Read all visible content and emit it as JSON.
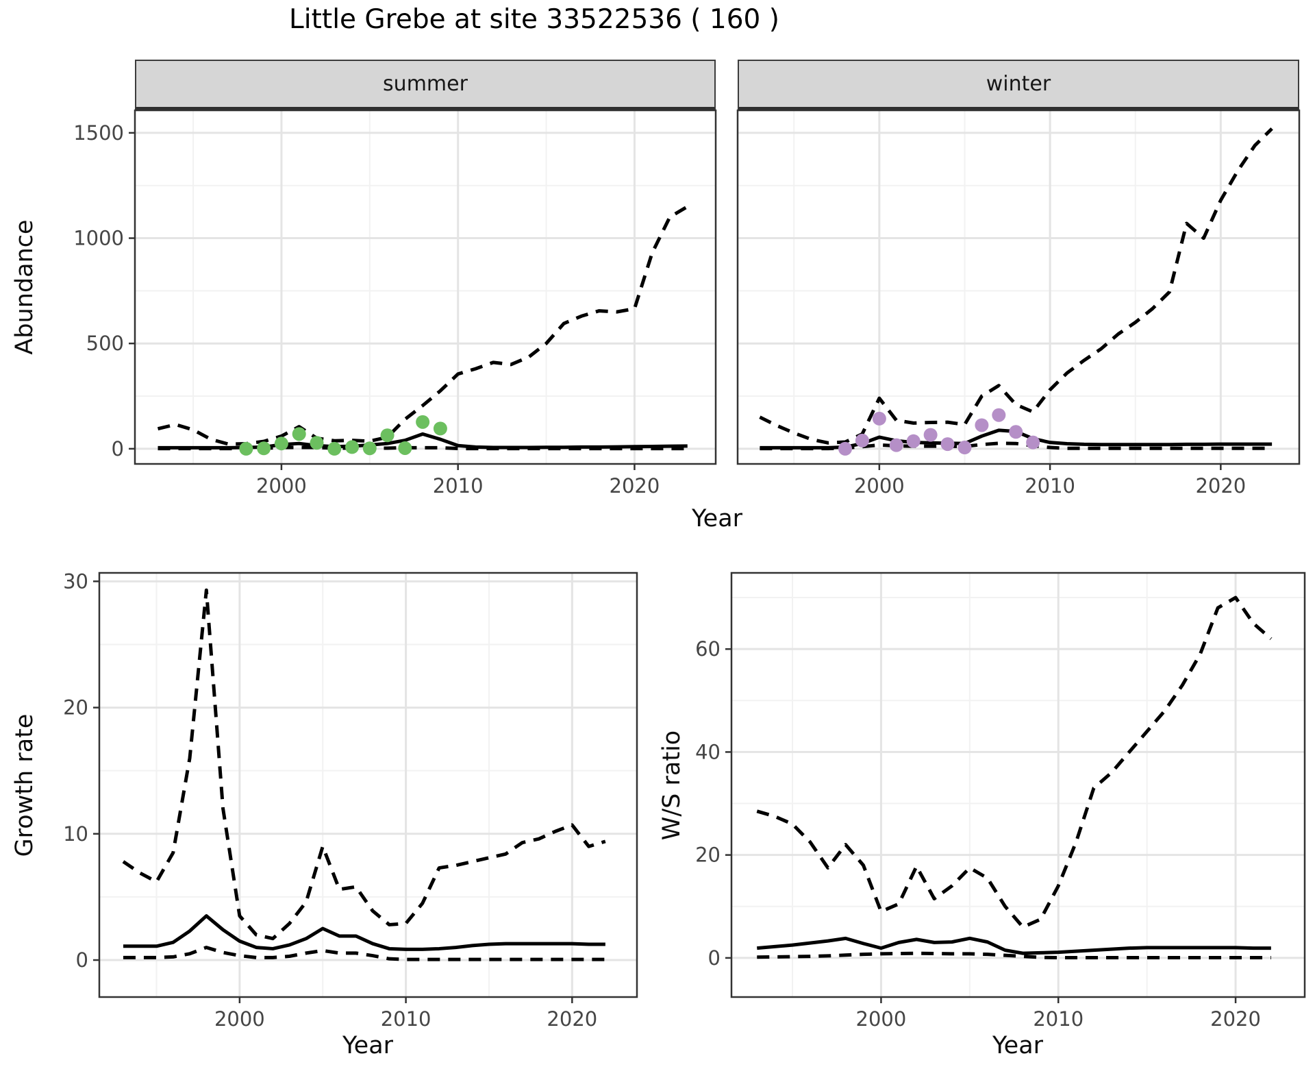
{
  "title": "Little Grebe at site 33522536 ( 160 )",
  "facets": {
    "summer": "summer",
    "winter": "winter"
  },
  "axis_titles": {
    "abundance": "Abundance",
    "year": "Year",
    "growth_rate": "Growth rate",
    "ws_ratio": "W/S ratio"
  },
  "colors": {
    "summer_points": "#6cbf5f",
    "winter_points": "#b58fc7",
    "line": "#000000",
    "strip_bg": "#d6d6d6",
    "panel_border": "#333333",
    "grid_major": "#e4e4e4",
    "grid_minor": "#f2f2f2",
    "axis_text": "#454545"
  },
  "chart_data": [
    {
      "id": "abundance_summer",
      "type": "line",
      "facet_label": "summer",
      "xlabel": "Year",
      "ylabel": "Abundance",
      "xlim": [
        1991.7,
        2024.6
      ],
      "ylim": [
        -72,
        1607
      ],
      "xticks": [
        2000,
        2010,
        2020
      ],
      "xminorticks": [
        1995,
        2005,
        2015
      ],
      "yticks": [
        0,
        500,
        1000,
        1500
      ],
      "yminorticks": [
        250,
        750,
        1250
      ],
      "grid": true,
      "legend": "none",
      "x": [
        1993,
        1994,
        1995,
        1996,
        1997,
        1998,
        1999,
        2000,
        2001,
        2002,
        2003,
        2004,
        2005,
        2006,
        2007,
        2008,
        2009,
        2010,
        2011,
        2012,
        2013,
        2014,
        2015,
        2016,
        2017,
        2018,
        2019,
        2020,
        2021,
        2022,
        2023
      ],
      "series": [
        {
          "name": "median",
          "style": "solid",
          "values": [
            5,
            5,
            5,
            5,
            5,
            6,
            8,
            20,
            25,
            15,
            10,
            12,
            18,
            25,
            40,
            70,
            45,
            15,
            8,
            6,
            6,
            6,
            7,
            7,
            8,
            8,
            9,
            10,
            11,
            12,
            13
          ]
        },
        {
          "name": "upper_95ci",
          "style": "dashed",
          "values": [
            95,
            115,
            90,
            45,
            22,
            24,
            35,
            60,
            105,
            50,
            38,
            40,
            36,
            55,
            140,
            205,
            275,
            355,
            380,
            410,
            400,
            435,
            500,
            595,
            630,
            655,
            650,
            665,
            930,
            1100,
            1150
          ]
        },
        {
          "name": "lower_95ci",
          "style": "dashed",
          "values": [
            1,
            1,
            1,
            1,
            1,
            1,
            2,
            6,
            6,
            6,
            3,
            3,
            3,
            3,
            5,
            5,
            5,
            1,
            1,
            1,
            1,
            1,
            1,
            1,
            1,
            1,
            1,
            1,
            1,
            1,
            1
          ]
        }
      ],
      "points": {
        "name": "observed_counts_summer",
        "color": "#6cbf5f",
        "x": [
          1998,
          1999,
          2000,
          2001,
          2002,
          2003,
          2004,
          2005,
          2006,
          2007,
          2008,
          2009
        ],
        "y": [
          0,
          2,
          25,
          70,
          28,
          0,
          8,
          2,
          64,
          3,
          127,
          96
        ]
      }
    },
    {
      "id": "abundance_winter",
      "type": "line",
      "facet_label": "winter",
      "xlabel": "Year",
      "ylabel": "Abundance",
      "xlim": [
        1991.7,
        2024.6
      ],
      "ylim": [
        -72,
        1607
      ],
      "xticks": [
        2000,
        2010,
        2020
      ],
      "xminorticks": [
        1995,
        2005,
        2015
      ],
      "yticks": [
        0,
        500,
        1000,
        1500
      ],
      "yminorticks": [
        250,
        750,
        1250
      ],
      "grid": true,
      "legend": "none",
      "x": [
        1993,
        1994,
        1995,
        1996,
        1997,
        1998,
        1999,
        2000,
        2001,
        2002,
        2003,
        2004,
        2005,
        2006,
        2007,
        2008,
        2009,
        2010,
        2011,
        2012,
        2013,
        2014,
        2015,
        2016,
        2017,
        2018,
        2019,
        2020,
        2021,
        2022,
        2023
      ],
      "series": [
        {
          "name": "median",
          "style": "solid",
          "values": [
            5,
            5,
            5,
            5,
            5,
            8,
            25,
            55,
            38,
            30,
            28,
            26,
            25,
            60,
            88,
            82,
            48,
            30,
            24,
            21,
            20,
            20,
            20,
            20,
            20,
            21,
            21,
            22,
            22,
            22,
            22
          ]
        },
        {
          "name": "upper_95ci",
          "style": "dashed",
          "values": [
            150,
            110,
            75,
            45,
            28,
            32,
            70,
            240,
            135,
            122,
            125,
            126,
            115,
            250,
            300,
            210,
            175,
            280,
            360,
            420,
            475,
            545,
            600,
            665,
            745,
            1070,
            1000,
            1180,
            1320,
            1440,
            1520
          ]
        },
        {
          "name": "lower_95ci",
          "style": "dashed",
          "values": [
            1,
            1,
            1,
            1,
            1,
            3,
            10,
            18,
            14,
            12,
            12,
            12,
            11,
            20,
            26,
            25,
            14,
            6,
            2,
            2,
            2,
            2,
            2,
            2,
            2,
            2,
            2,
            2,
            2,
            2,
            2
          ]
        }
      ],
      "points": {
        "name": "observed_counts_winter",
        "color": "#b58fc7",
        "x": [
          1998,
          1999,
          2000,
          2001,
          2002,
          2003,
          2004,
          2005,
          2006,
          2007,
          2008,
          2009
        ],
        "y": [
          0,
          39,
          143,
          17,
          36,
          66,
          22,
          6,
          112,
          160,
          80,
          30
        ]
      }
    },
    {
      "id": "growth_rate",
      "type": "line",
      "facet_label": "",
      "xlabel": "Year",
      "ylabel": "Growth rate",
      "xlim": [
        1991.56,
        2023.9
      ],
      "ylim": [
        -2.93,
        30.67
      ],
      "xticks": [
        2000,
        2010,
        2020
      ],
      "xminorticks": [
        1995,
        2005,
        2015
      ],
      "yticks": [
        0,
        10,
        20,
        30
      ],
      "yminorticks": [
        5,
        15,
        25
      ],
      "grid": true,
      "legend": "none",
      "x": [
        1993,
        1994,
        1995,
        1996,
        1997,
        1998,
        1999,
        2000,
        2001,
        2002,
        2003,
        2004,
        2005,
        2006,
        2007,
        2008,
        2009,
        2010,
        2011,
        2012,
        2013,
        2014,
        2015,
        2016,
        2017,
        2018,
        2019,
        2020,
        2021,
        2022
      ],
      "series": [
        {
          "name": "median",
          "style": "solid",
          "values": [
            1.1,
            1.1,
            1.1,
            1.4,
            2.3,
            3.5,
            2.4,
            1.5,
            1.0,
            0.9,
            1.2,
            1.7,
            2.5,
            1.9,
            1.9,
            1.3,
            0.9,
            0.85,
            0.85,
            0.9,
            1.0,
            1.15,
            1.25,
            1.3,
            1.3,
            1.3,
            1.3,
            1.3,
            1.25,
            1.25
          ]
        },
        {
          "name": "upper_95ci",
          "style": "dashed",
          "values": [
            7.8,
            6.9,
            6.2,
            8.5,
            16,
            29.3,
            12,
            3.5,
            2.0,
            1.7,
            2.9,
            4.6,
            9.0,
            5.6,
            5.8,
            3.9,
            2.8,
            2.9,
            4.5,
            7.3,
            7.5,
            7.8,
            8.1,
            8.4,
            9.3,
            9.6,
            10.2,
            10.7,
            9.0,
            9.4
          ]
        },
        {
          "name": "lower_95ci",
          "style": "dashed",
          "values": [
            0.2,
            0.2,
            0.2,
            0.25,
            0.5,
            1.0,
            0.6,
            0.35,
            0.2,
            0.2,
            0.3,
            0.55,
            0.75,
            0.55,
            0.55,
            0.35,
            0.1,
            0.05,
            0.05,
            0.05,
            0.05,
            0.05,
            0.05,
            0.05,
            0.05,
            0.05,
            0.05,
            0.05,
            0.05,
            0.05
          ]
        }
      ]
    },
    {
      "id": "ws_ratio",
      "type": "line",
      "facet_label": "",
      "xlabel": "Year",
      "ylabel": "W/S ratio",
      "xlim": [
        1991.56,
        2023.9
      ],
      "ylim": [
        -7.6,
        74.8
      ],
      "xticks": [
        2000,
        2010,
        2020
      ],
      "xminorticks": [
        1995,
        2005,
        2015
      ],
      "yticks": [
        0,
        20,
        40,
        60
      ],
      "yminorticks": [
        10,
        30,
        50,
        70
      ],
      "grid": true,
      "legend": "none",
      "x": [
        1993,
        1994,
        1995,
        1996,
        1997,
        1998,
        1999,
        2000,
        2001,
        2002,
        2003,
        2004,
        2005,
        2006,
        2007,
        2008,
        2009,
        2010,
        2011,
        2012,
        2013,
        2014,
        2015,
        2016,
        2017,
        2018,
        2019,
        2020,
        2021,
        2022
      ],
      "series": [
        {
          "name": "median",
          "style": "solid",
          "values": [
            1.9,
            2.2,
            2.5,
            2.9,
            3.3,
            3.8,
            2.8,
            1.9,
            3.0,
            3.6,
            3.0,
            3.1,
            3.8,
            3.1,
            1.5,
            0.9,
            1.0,
            1.1,
            1.3,
            1.5,
            1.7,
            1.9,
            2.0,
            2.0,
            2.0,
            2.0,
            2.0,
            2.0,
            1.9,
            1.9
          ]
        },
        {
          "name": "upper_95ci",
          "style": "dashed",
          "values": [
            28.5,
            27.5,
            26,
            22.5,
            17.5,
            22,
            18,
            9,
            10.5,
            17.8,
            11.5,
            14,
            17.5,
            15.5,
            10,
            6,
            7.5,
            14,
            22.5,
            33,
            36,
            40,
            44,
            48,
            53,
            59,
            68,
            70,
            65,
            62
          ]
        },
        {
          "name": "lower_95ci",
          "style": "dashed",
          "values": [
            0.15,
            0.2,
            0.25,
            0.3,
            0.4,
            0.55,
            0.7,
            0.8,
            0.85,
            0.9,
            0.85,
            0.8,
            0.8,
            0.7,
            0.5,
            0.3,
            0.1,
            0.05,
            0.05,
            0.05,
            0.05,
            0.05,
            0.05,
            0.05,
            0.05,
            0.05,
            0.05,
            0.05,
            0.05,
            0.05
          ]
        }
      ]
    }
  ]
}
